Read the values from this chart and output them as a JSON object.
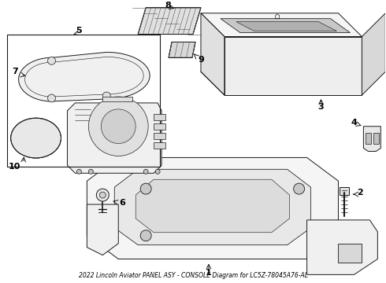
{
  "title": "2022 Lincoln Aviator PANEL ASY - CONSOLE Diagram for LC5Z-78045A76-AL",
  "background_color": "#ffffff",
  "line_color": "#1a1a1a",
  "figsize": [
    4.9,
    3.6
  ],
  "dpi": 100,
  "gray_fill": "#e8e8e8",
  "light_gray": "#d0d0d0",
  "mid_gray": "#b0b0b0"
}
